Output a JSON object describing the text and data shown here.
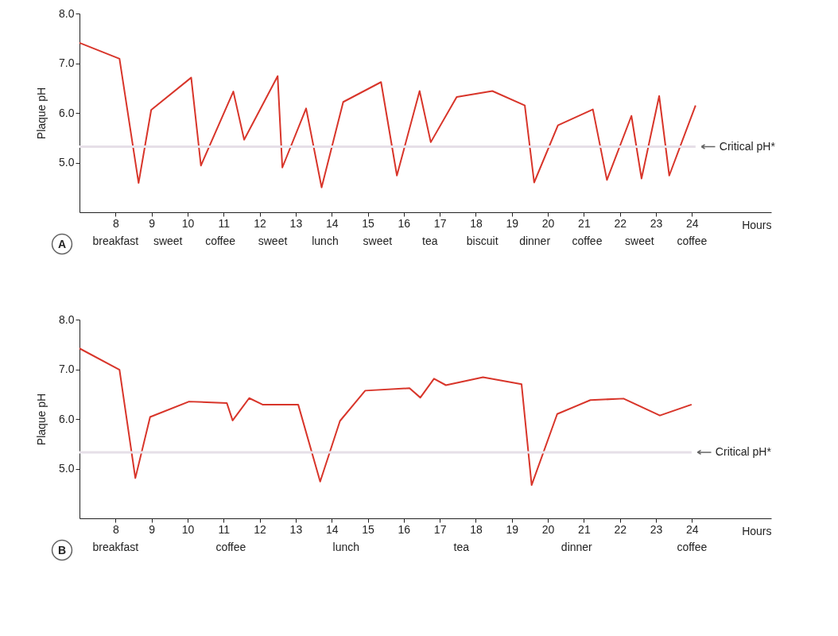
{
  "chart_data": [
    {
      "type": "line",
      "xlabel": "Hours",
      "ylabel": "Plaque pH",
      "xlim": [
        7,
        26.2
      ],
      "ylim": [
        4,
        8
      ],
      "xticks": [
        8,
        9,
        10,
        11,
        12,
        13,
        14,
        15,
        16,
        17,
        18,
        19,
        20,
        21,
        22,
        23,
        24
      ],
      "yticks": [
        {
          "value": 5,
          "label": "5.0"
        },
        {
          "value": 6,
          "label": "6.0"
        },
        {
          "value": 7,
          "label": "7.0"
        },
        {
          "value": 8,
          "label": "8.0"
        }
      ],
      "series": [
        {
          "color": "#d8352a",
          "x": [
            7,
            8.11,
            8.64,
            8.99,
            10.1,
            10.37,
            11.27,
            11.57,
            12.5,
            12.63,
            13.29,
            13.72,
            14.32,
            15.37,
            15.81,
            16.44,
            16.75,
            17.47,
            18.46,
            19.36,
            19.62,
            20.28,
            21.25,
            21.64,
            22.32,
            22.6,
            23.09,
            23.37,
            24.1
          ],
          "values": [
            7.41,
            7.09,
            4.59,
            6.06,
            6.71,
            4.94,
            6.43,
            5.46,
            6.74,
            4.9,
            6.09,
            4.5,
            6.22,
            6.62,
            4.74,
            6.44,
            5.41,
            6.32,
            6.44,
            6.15,
            4.6,
            5.75,
            6.07,
            4.65,
            5.94,
            4.68,
            6.34,
            4.74,
            6.15
          ]
        }
      ],
      "marker": "none",
      "line_style": "solid",
      "grid": false,
      "ref_lines": [
        {
          "axis": "y",
          "value": 5.32,
          "label": "Critical pH*",
          "color": "#e6dfe8"
        }
      ],
      "annotations": [
        "A",
        "breakfast",
        "sweet",
        "coffee",
        "sweet",
        "lunch",
        "sweet",
        "tea",
        "biscuit",
        "dinner",
        "coffee",
        "sweet",
        "coffee"
      ]
    },
    {
      "type": "line",
      "xlabel": "Hours",
      "ylabel": "Plaque pH",
      "xlim": [
        7,
        26.2
      ],
      "ylim": [
        4,
        8
      ],
      "xticks": [
        8,
        9,
        10,
        11,
        12,
        13,
        14,
        15,
        16,
        17,
        18,
        19,
        20,
        21,
        22,
        23,
        24
      ],
      "yticks": [
        {
          "value": 5,
          "label": "5.0"
        },
        {
          "value": 6,
          "label": "6.0"
        },
        {
          "value": 7,
          "label": "7.0"
        },
        {
          "value": 8,
          "label": "8.0"
        }
      ],
      "series": [
        {
          "color": "#d8352a",
          "x": [
            7,
            8.11,
            8.55,
            8.96,
            10.04,
            11.09,
            11.25,
            11.71,
            12.08,
            13.07,
            13.68,
            14.23,
            14.93,
            16.16,
            16.46,
            16.84,
            17.17,
            18.2,
            19.27,
            19.55,
            20.26,
            21.18,
            22.1,
            23.11,
            23.99
          ],
          "values": [
            7.42,
            6.99,
            4.81,
            6.04,
            6.35,
            6.32,
            5.97,
            6.42,
            6.29,
            6.29,
            4.74,
            5.96,
            6.57,
            6.62,
            6.43,
            6.81,
            6.68,
            6.84,
            6.7,
            4.67,
            6.1,
            6.38,
            6.41,
            6.07,
            6.29
          ]
        }
      ],
      "marker": "none",
      "line_style": "solid",
      "grid": false,
      "ref_lines": [
        {
          "axis": "y",
          "value": 5.33,
          "label": "Critical pH*",
          "color": "#e6dfe8"
        }
      ],
      "annotations": [
        "B",
        "breakfast",
        "coffee",
        "lunch",
        "tea",
        "dinner",
        "coffee"
      ]
    }
  ]
}
